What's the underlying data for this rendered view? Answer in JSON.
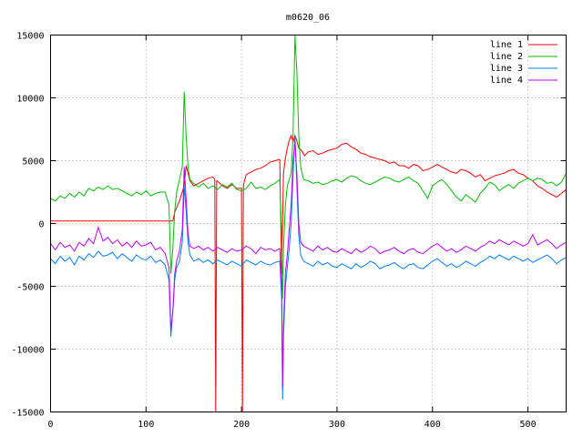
{
  "chart_data": {
    "type": "line",
    "title": "m0620_06",
    "xlabel": "",
    "ylabel": "",
    "xlim": [
      0,
      540
    ],
    "ylim": [
      -15000,
      15000
    ],
    "xticks": [
      0,
      100,
      200,
      300,
      400,
      500
    ],
    "yticks": [
      -15000,
      -10000,
      -5000,
      0,
      5000,
      10000,
      15000
    ],
    "grid": true,
    "legend_position": "top-right",
    "series": [
      {
        "name": "line 1",
        "color": "#ff0000",
        "x": [
          0,
          128,
          130,
          135,
          140,
          142,
          144,
          146,
          150,
          155,
          160,
          165,
          170,
          172,
          173,
          174,
          176,
          180,
          185,
          190,
          195,
          200,
          201,
          202,
          203,
          205,
          210,
          215,
          220,
          225,
          230,
          235,
          240,
          242,
          244,
          246,
          248,
          250,
          252,
          254,
          256,
          258,
          260,
          263,
          266,
          270,
          275,
          280,
          285,
          290,
          295,
          300,
          305,
          310,
          315,
          320,
          325,
          330,
          335,
          340,
          345,
          350,
          355,
          360,
          365,
          370,
          375,
          380,
          385,
          390,
          395,
          400,
          405,
          410,
          415,
          420,
          425,
          430,
          435,
          440,
          445,
          450,
          455,
          460,
          465,
          470,
          475,
          480,
          485,
          490,
          495,
          500,
          505,
          510,
          515,
          520,
          525,
          530,
          535,
          540
        ],
        "y": [
          200,
          200,
          900,
          1800,
          3000,
          4600,
          4000,
          3400,
          3000,
          3200,
          3400,
          3600,
          3700,
          3500,
          -15000,
          3400,
          3300,
          3000,
          2800,
          3100,
          2800,
          2800,
          -15000,
          3000,
          3400,
          3900,
          4100,
          4300,
          4400,
          4600,
          4900,
          5000,
          5100,
          -4000,
          4000,
          5200,
          6000,
          6600,
          7000,
          6500,
          7000,
          6600,
          6000,
          5800,
          5400,
          5700,
          5800,
          5500,
          5600,
          5800,
          5900,
          6000,
          6300,
          6400,
          6100,
          5900,
          5600,
          5500,
          5300,
          5200,
          5100,
          5000,
          4800,
          4900,
          4600,
          4600,
          4400,
          4700,
          4600,
          4200,
          4300,
          4500,
          4700,
          4500,
          4300,
          4100,
          4000,
          4300,
          4200,
          4000,
          3700,
          3900,
          3400,
          3600,
          3800,
          3900,
          4000,
          4200,
          4300,
          4000,
          3900,
          3600,
          3400,
          3000,
          2800,
          2500,
          2300,
          2100,
          2400,
          2700
        ]
      },
      {
        "name": "line 2",
        "color": "#00c000",
        "x": [
          0,
          5,
          10,
          15,
          20,
          25,
          30,
          35,
          40,
          45,
          50,
          55,
          60,
          65,
          70,
          75,
          80,
          85,
          90,
          95,
          100,
          105,
          110,
          115,
          120,
          124,
          126,
          128,
          130,
          132,
          135,
          138,
          140,
          142,
          144,
          146,
          150,
          155,
          160,
          165,
          170,
          175,
          180,
          185,
          190,
          195,
          200,
          205,
          210,
          215,
          220,
          225,
          230,
          235,
          240,
          242,
          243,
          244,
          246,
          248,
          250,
          252,
          254,
          256,
          258,
          260,
          262,
          265,
          270,
          275,
          280,
          285,
          290,
          295,
          300,
          305,
          310,
          315,
          320,
          325,
          330,
          335,
          340,
          345,
          350,
          355,
          360,
          365,
          370,
          375,
          380,
          385,
          390,
          395,
          400,
          405,
          410,
          415,
          420,
          425,
          430,
          435,
          440,
          445,
          450,
          455,
          460,
          465,
          470,
          475,
          480,
          485,
          490,
          495,
          500,
          505,
          510,
          515,
          520,
          525,
          530,
          535,
          540
        ],
        "y": [
          2000,
          1800,
          2200,
          2000,
          2400,
          2100,
          2500,
          2200,
          2800,
          2600,
          2900,
          2700,
          3000,
          2700,
          2800,
          2600,
          2400,
          2200,
          2500,
          2300,
          2600,
          2200,
          2400,
          2500,
          2500,
          1500,
          -4000,
          -2000,
          1000,
          2500,
          3500,
          4500,
          10500,
          7000,
          4500,
          3500,
          3200,
          2900,
          3200,
          2800,
          3000,
          2700,
          3100,
          2900,
          3200,
          2700,
          2600,
          2800,
          3300,
          2800,
          2900,
          2700,
          3000,
          3200,
          3500,
          -800,
          -6000,
          -2000,
          1500,
          3000,
          3500,
          4000,
          7000,
          15000,
          12000,
          7000,
          4500,
          3500,
          3400,
          3200,
          3300,
          3100,
          3200,
          3400,
          3500,
          3300,
          3600,
          3800,
          3700,
          3400,
          3200,
          3100,
          3300,
          3500,
          3700,
          3600,
          3400,
          3300,
          3500,
          3700,
          3400,
          3200,
          2600,
          2000,
          3000,
          3300,
          3500,
          3100,
          2600,
          2100,
          1800,
          2300,
          2000,
          1700,
          2400,
          2800,
          3300,
          3100,
          2600,
          2900,
          3100,
          2800,
          3200,
          3400,
          3600,
          3400,
          3600,
          3500,
          3200,
          3300,
          3000,
          3300,
          4000
        ]
      },
      {
        "name": "line 3",
        "color": "#0080ff",
        "x": [
          0,
          5,
          10,
          15,
          20,
          25,
          30,
          35,
          40,
          45,
          50,
          55,
          60,
          65,
          70,
          75,
          80,
          85,
          90,
          95,
          100,
          105,
          110,
          115,
          120,
          124,
          126,
          128,
          130,
          132,
          135,
          138,
          140,
          142,
          144,
          146,
          150,
          155,
          160,
          165,
          170,
          175,
          180,
          185,
          190,
          195,
          200,
          205,
          210,
          215,
          220,
          225,
          230,
          235,
          240,
          242,
          243,
          244,
          246,
          248,
          250,
          252,
          254,
          256,
          258,
          260,
          262,
          265,
          270,
          275,
          280,
          285,
          290,
          295,
          300,
          305,
          310,
          315,
          320,
          325,
          330,
          335,
          340,
          345,
          350,
          355,
          360,
          365,
          370,
          375,
          380,
          385,
          390,
          395,
          400,
          405,
          410,
          415,
          420,
          425,
          430,
          435,
          440,
          445,
          450,
          455,
          460,
          465,
          470,
          475,
          480,
          485,
          490,
          495,
          500,
          505,
          510,
          515,
          520,
          525,
          530,
          535,
          540
        ],
        "y": [
          -2800,
          -3200,
          -2600,
          -3000,
          -2700,
          -3300,
          -2600,
          -2900,
          -2400,
          -2700,
          -2200,
          -2600,
          -2500,
          -2300,
          -2800,
          -2400,
          -2700,
          -3000,
          -2500,
          -2800,
          -2900,
          -2600,
          -3100,
          -2900,
          -3300,
          -4500,
          -9000,
          -7000,
          -4500,
          -3500,
          -3000,
          -1500,
          3000,
          1000,
          -1500,
          -2500,
          -3000,
          -2800,
          -3100,
          -2900,
          -3200,
          -2900,
          -3100,
          -3300,
          -3000,
          -3200,
          -3400,
          -2900,
          -3100,
          -3300,
          -3000,
          -3200,
          -3300,
          -3100,
          -3000,
          -6000,
          -14000,
          -9000,
          -5000,
          -3500,
          -2000,
          0,
          4000,
          7000,
          3000,
          -1000,
          -2500,
          -3000,
          -3200,
          -3400,
          -3000,
          -3300,
          -3100,
          -3400,
          -3500,
          -3200,
          -3400,
          -3600,
          -3200,
          -3500,
          -3300,
          -3000,
          -3200,
          -3600,
          -3400,
          -3300,
          -3100,
          -3400,
          -3600,
          -3300,
          -3200,
          -3500,
          -3600,
          -3300,
          -3000,
          -2800,
          -3100,
          -3400,
          -3200,
          -3500,
          -3300,
          -3000,
          -3200,
          -3400,
          -3100,
          -2900,
          -2600,
          -2800,
          -2500,
          -2700,
          -2900,
          -2600,
          -2800,
          -3000,
          -2800,
          -3100,
          -2900,
          -2700,
          -2500,
          -2800,
          -3200,
          -2900,
          -2700
        ]
      },
      {
        "name": "line 4",
        "color": "#c000ff",
        "x": [
          0,
          5,
          10,
          15,
          20,
          25,
          30,
          35,
          40,
          45,
          50,
          55,
          60,
          65,
          70,
          75,
          80,
          85,
          90,
          95,
          100,
          105,
          110,
          115,
          120,
          124,
          126,
          128,
          130,
          132,
          135,
          138,
          140,
          142,
          144,
          146,
          150,
          155,
          160,
          165,
          170,
          175,
          180,
          185,
          190,
          195,
          200,
          205,
          210,
          215,
          220,
          225,
          230,
          235,
          240,
          242,
          243,
          244,
          246,
          248,
          250,
          252,
          254,
          256,
          258,
          260,
          262,
          265,
          270,
          275,
          280,
          285,
          290,
          295,
          300,
          305,
          310,
          315,
          320,
          325,
          330,
          335,
          340,
          345,
          350,
          355,
          360,
          365,
          370,
          375,
          380,
          385,
          390,
          395,
          400,
          405,
          410,
          415,
          420,
          425,
          430,
          435,
          440,
          445,
          450,
          455,
          460,
          465,
          470,
          475,
          480,
          485,
          490,
          495,
          500,
          505,
          510,
          515,
          520,
          525,
          530,
          535,
          540
        ],
        "y": [
          -1600,
          -2100,
          -1500,
          -1900,
          -1700,
          -2200,
          -1500,
          -1800,
          -1200,
          -1600,
          -300,
          -1400,
          -1100,
          -1600,
          -1300,
          -1800,
          -1500,
          -1900,
          -1400,
          -1800,
          -1700,
          -1500,
          -2100,
          -1900,
          -2400,
          -3500,
          -8500,
          -7000,
          -4000,
          -3000,
          -2200,
          -500,
          4500,
          2000,
          -800,
          -1800,
          -2000,
          -1800,
          -2100,
          -1900,
          -2200,
          -1900,
          -2100,
          -2300,
          -2000,
          -2200,
          -2100,
          -1800,
          -2000,
          -2400,
          -1900,
          -2100,
          -2000,
          -2200,
          -2000,
          -5000,
          -13000,
          -8000,
          -4000,
          -2500,
          -500,
          1500,
          5000,
          6500,
          4000,
          0,
          -1500,
          -1800,
          -2000,
          -2200,
          -1800,
          -2100,
          -1900,
          -2200,
          -2300,
          -2000,
          -2200,
          -2400,
          -2000,
          -2300,
          -2100,
          -1800,
          -2000,
          -2400,
          -2200,
          -2100,
          -1900,
          -2200,
          -2400,
          -2100,
          -2000,
          -2300,
          -2400,
          -2100,
          -1800,
          -1600,
          -1900,
          -2200,
          -2000,
          -2300,
          -2100,
          -1800,
          -2000,
          -2200,
          -1900,
          -1700,
          -1400,
          -1600,
          -1300,
          -1500,
          -1700,
          -1400,
          -1600,
          -1800,
          -1600,
          -900,
          -1700,
          -1500,
          -1300,
          -1600,
          -2000,
          -1700,
          -1500
        ]
      }
    ]
  }
}
